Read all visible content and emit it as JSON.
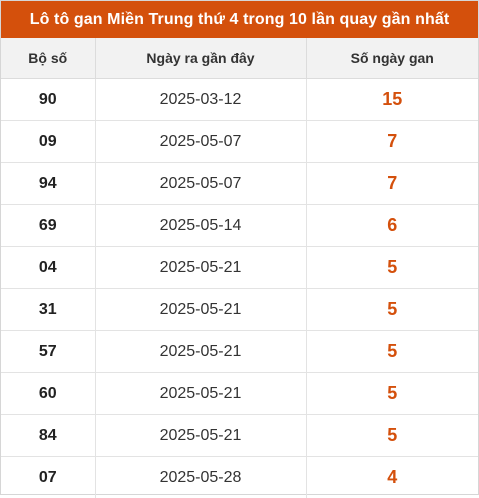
{
  "title": "Lô tô gan Miền Trung thứ 4 trong 10 lần quay gần nhất",
  "columns": [
    "Bộ số",
    "Ngày ra gần đây",
    "Số ngày gan"
  ],
  "rows": [
    {
      "number": "90",
      "date": "2025-03-12",
      "days": "15"
    },
    {
      "number": "09",
      "date": "2025-05-07",
      "days": "7"
    },
    {
      "number": "94",
      "date": "2025-05-07",
      "days": "7"
    },
    {
      "number": "69",
      "date": "2025-05-14",
      "days": "6"
    },
    {
      "number": "04",
      "date": "2025-05-21",
      "days": "5"
    },
    {
      "number": "31",
      "date": "2025-05-21",
      "days": "5"
    },
    {
      "number": "57",
      "date": "2025-05-21",
      "days": "5"
    },
    {
      "number": "60",
      "date": "2025-05-21",
      "days": "5"
    },
    {
      "number": "84",
      "date": "2025-05-21",
      "days": "5"
    },
    {
      "number": "07",
      "date": "2025-05-28",
      "days": "4"
    }
  ],
  "colors": {
    "accent": "#d4500c",
    "header_bg": "#f2f2f2"
  }
}
